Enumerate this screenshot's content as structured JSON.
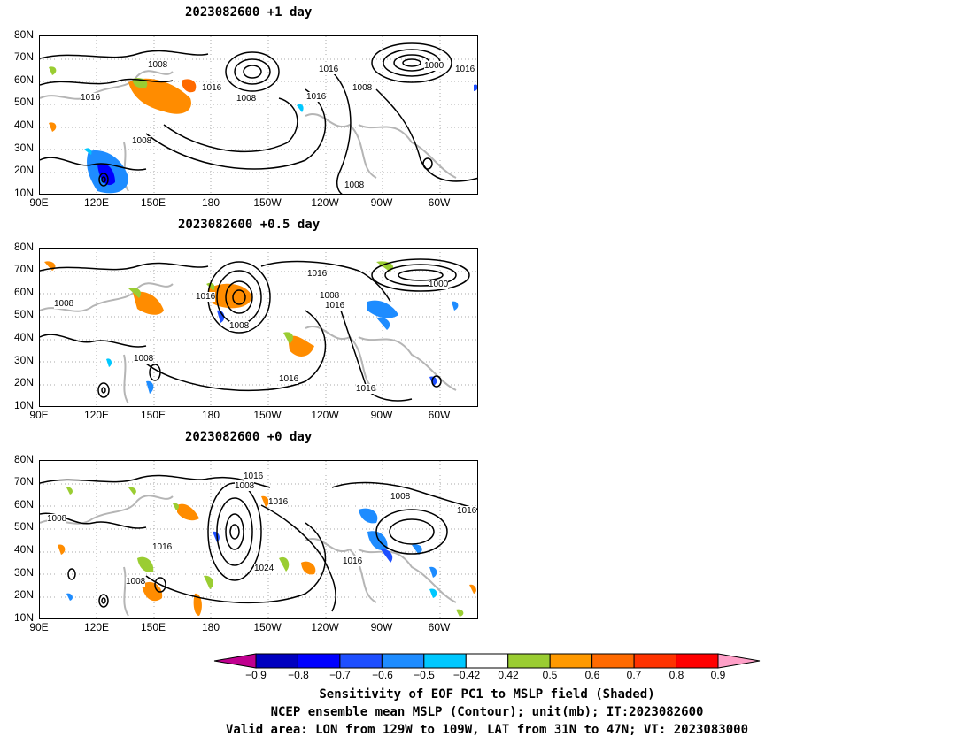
{
  "panels": [
    {
      "title": "2023082600  +1 day",
      "contour_labels": [
        "1008",
        "1016",
        "1016",
        "1008",
        "1016",
        "1008",
        "1000",
        "1016",
        "1016",
        "1008",
        "1008"
      ],
      "yticks": [
        "80N",
        "70N",
        "60N",
        "50N",
        "40N",
        "30N",
        "20N",
        "10N"
      ],
      "xticks": [
        "90E",
        "120E",
        "150E",
        "180",
        "150W",
        "120W",
        "90W",
        "60W"
      ]
    },
    {
      "title": "2023082600  +0.5 day",
      "contour_labels": [
        "1016",
        "1008",
        "1016",
        "1016",
        "1000",
        "1008",
        "1008",
        "1016",
        "1016",
        "1008"
      ],
      "yticks": [
        "80N",
        "70N",
        "60N",
        "50N",
        "40N",
        "30N",
        "20N",
        "10N"
      ],
      "xticks": [
        "90E",
        "120E",
        "150E",
        "180",
        "150W",
        "120W",
        "90W",
        "60W"
      ]
    },
    {
      "title": "2023082600  +0 day",
      "contour_labels": [
        "1016",
        "1008",
        "1016",
        "1008",
        "1008",
        "1016",
        "1016",
        "1024",
        "1008",
        "1016"
      ],
      "yticks": [
        "80N",
        "70N",
        "60N",
        "50N",
        "40N",
        "30N",
        "20N",
        "10N"
      ],
      "xticks": [
        "90E",
        "120E",
        "150E",
        "180",
        "150W",
        "120W",
        "90W",
        "60W"
      ]
    }
  ],
  "colorbar": {
    "labels": [
      "−0.9",
      "−0.8",
      "−0.7",
      "−0.6",
      "−0.5",
      "−0.42",
      "0.42",
      "0.5",
      "0.6",
      "0.7",
      "0.8",
      "0.9"
    ],
    "colors": [
      "#c0008f",
      "#0000bf",
      "#0000ff",
      "#1e4fff",
      "#1e8cff",
      "#00c8ff",
      "#ffffff",
      "#9acd32",
      "#ff9900",
      "#ff6a00",
      "#ff3300",
      "#ff0000",
      "#ffa0c8"
    ]
  },
  "captions": {
    "line1": "Sensitivity of EOF PC1 to MSLP field (Shaded)",
    "line2": "NCEP ensemble mean MSLP (Contour); unit(mb); IT:2023082600",
    "line3": "Valid area: LON from 129W to 109W, LAT from 31N to 47N; VT: 2023083000"
  }
}
